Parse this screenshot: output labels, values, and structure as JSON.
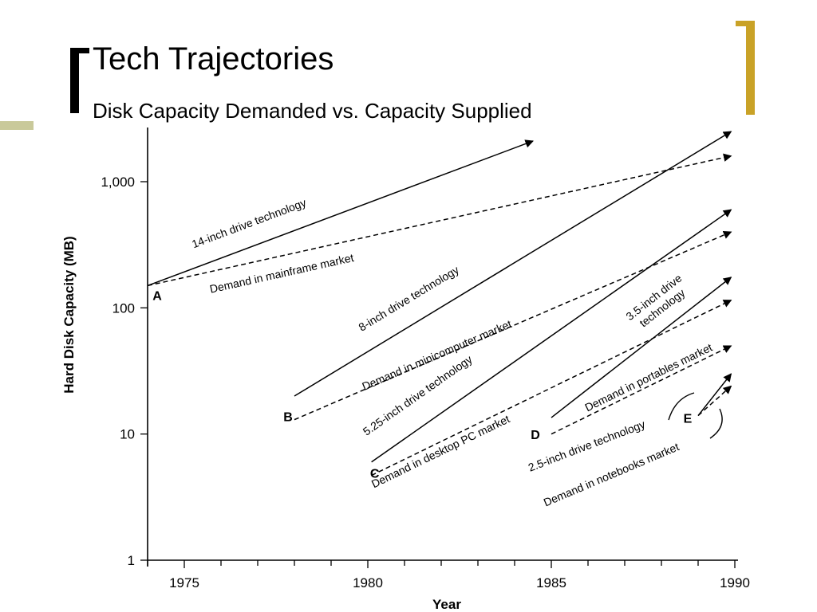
{
  "slide": {
    "title": "Tech Trajectories",
    "subtitle": "Disk Capacity Demanded vs. Capacity Supplied"
  },
  "colors": {
    "accent_gold": "#C9A227",
    "accent_bar": "#C9C99A",
    "ink": "#000000"
  },
  "chart_data": {
    "type": "line",
    "xlabel": "Year",
    "ylabel": "Hard Disk Capacity (MB)",
    "yscale": "log",
    "xlim": [
      1974,
      1990
    ],
    "ylim": [
      1,
      1000
    ],
    "x_ticks": [
      "1975",
      "1980",
      "1985",
      "1990"
    ],
    "y_ticks": [
      "1",
      "10",
      "100",
      "1,000"
    ],
    "series": [
      {
        "name": "14-inch drive technology",
        "style": "solid",
        "x": [
          1974,
          1984.5
        ],
        "y": [
          150,
          2100
        ]
      },
      {
        "name": "Demand in mainframe market",
        "style": "dashed",
        "x": [
          1974,
          1989.9
        ],
        "y": [
          150,
          1600
        ]
      },
      {
        "name": "8-inch drive technology",
        "style": "solid",
        "x": [
          1978,
          1989.9
        ],
        "y": [
          20,
          2500
        ]
      },
      {
        "name": "Demand in minicomputer market",
        "style": "dashed",
        "x": [
          1978,
          1989.9
        ],
        "y": [
          13,
          400
        ]
      },
      {
        "name": "5.25-inch drive technology",
        "style": "solid",
        "x": [
          1980.1,
          1989.9
        ],
        "y": [
          6,
          600
        ]
      },
      {
        "name": "Demand in desktop PC market",
        "style": "dashed",
        "x": [
          1980.1,
          1989.9
        ],
        "y": [
          4.7,
          115
        ]
      },
      {
        "name": "3.5-inch drive technology",
        "style": "solid",
        "x": [
          1985,
          1989.9
        ],
        "y": [
          13.5,
          175
        ]
      },
      {
        "name": "Demand in portables market",
        "style": "dashed",
        "x": [
          1985,
          1989.9
        ],
        "y": [
          10,
          50
        ]
      },
      {
        "name": "2.5-inch drive technology",
        "style": "solid",
        "x": [
          1989,
          1989.9
        ],
        "y": [
          14,
          30
        ]
      },
      {
        "name": "Demand in notebooks market",
        "style": "dashed",
        "x": [
          1989,
          1989.9
        ],
        "y": [
          14,
          24
        ]
      }
    ],
    "points": [
      {
        "label": "A",
        "x": 1974,
        "y": 150
      },
      {
        "label": "B",
        "x": 1978,
        "y": 16
      },
      {
        "label": "C",
        "x": 1980.1,
        "y": 5.2
      },
      {
        "label": "D",
        "x": 1985,
        "y": 11
      },
      {
        "label": "E",
        "x": 1989,
        "y": 14
      }
    ],
    "annotations": [
      {
        "text": "14-inch drive technology",
        "series": 0
      },
      {
        "text": "Demand in mainframe market",
        "series": 1
      },
      {
        "text": "8-inch drive technology",
        "series": 2
      },
      {
        "text": "Demand in minicomputer market",
        "series": 3
      },
      {
        "text": "5.25-inch drive technology",
        "series": 4
      },
      {
        "text": "Demand in desktop PC market",
        "series": 5
      },
      {
        "text": "3.5-inch drive technology",
        "series": 6
      },
      {
        "text": "Demand in portables market",
        "series": 7
      },
      {
        "text": "2.5-inch drive technology",
        "series": 8
      },
      {
        "text": "Demand in notebooks market",
        "series": 9
      }
    ]
  }
}
